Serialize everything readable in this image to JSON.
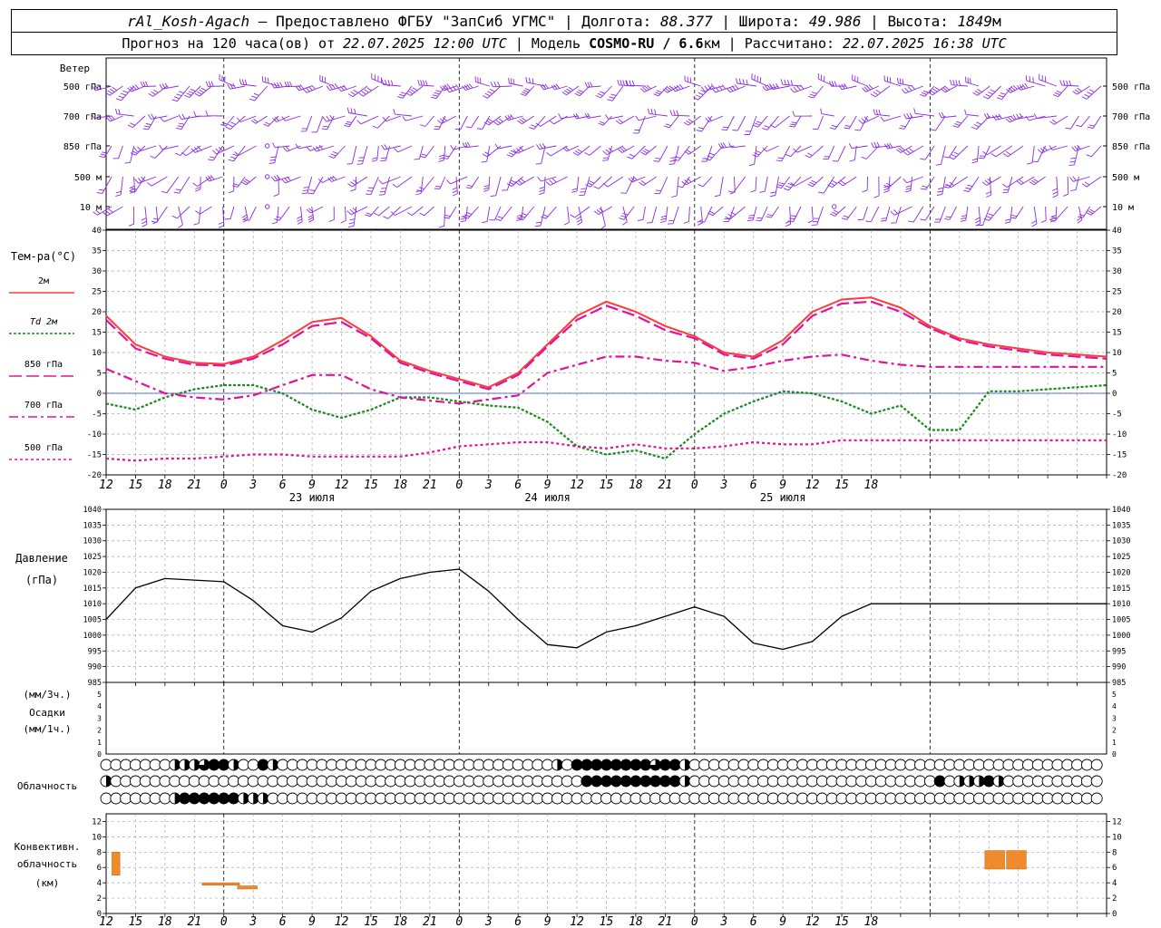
{
  "header": {
    "station": "rAl_Kosh-Agach",
    "provider": "Предоставлено ФГБУ \"ЗапСиб УГМС\"",
    "lon_label": "Долгота:",
    "lon": "88.377",
    "lat_label": "Широта:",
    "lat": "49.986",
    "alt_label": "Высота:",
    "alt": "1849",
    "alt_unit": "м",
    "forecast_label": "Прогноз на 120 часа(ов) от",
    "forecast_start": "22.07.2025 12:00 UTC",
    "model_label": "Модель",
    "model": "COSMO-RU / 6.6",
    "model_unit": "км",
    "calc_label": "Рассчитано:",
    "calc_time": "22.07.2025 16:38 UTC",
    "sep": "|",
    "dash": "–"
  },
  "wind_panel": {
    "title": "Ветер",
    "levels": [
      "500 гПа",
      "700 гПа",
      "850 гПа",
      "500 м",
      "10  м"
    ],
    "color": "#8a2be2"
  },
  "time_axis": {
    "hour_labels": [
      "12",
      "15",
      "18",
      "21",
      "0",
      "3",
      "6",
      "9",
      "12",
      "15",
      "18",
      "21",
      "0",
      "3",
      "6",
      "9",
      "12",
      "15",
      "18",
      "21",
      "0",
      "3",
      "6",
      "9",
      "12",
      "15",
      "18"
    ],
    "dates": [
      {
        "label": "23 июля",
        "at_hour": 21
      },
      {
        "label": "24 июля",
        "at_hour": 45
      },
      {
        "label": "25 июля",
        "at_hour": 69
      }
    ],
    "midnights": [
      12,
      36,
      60,
      84
    ],
    "range_hours": [
      0,
      102
    ]
  },
  "temp_panel": {
    "title": "Тем-ра(°С)",
    "legend": [
      {
        "label": "2м",
        "color": "#ff3b3b",
        "dash": ""
      },
      {
        "label": "Td  2м",
        "color": "#1a8a1a",
        "dash": "3,2"
      },
      {
        "label": "850 гПа",
        "color": "#e0139a",
        "dash": "14,5"
      },
      {
        "label": "700 гПа",
        "color": "#e0139a",
        "dash": "10,4,3,4"
      },
      {
        "label": "500 гПа",
        "color": "#e0139a",
        "dash": "3,3"
      }
    ],
    "ylim": [
      -20,
      40
    ],
    "ticks": [
      "40",
      "35",
      "30",
      "25",
      "20",
      "15",
      "10",
      "5",
      "0",
      "-5",
      "-10",
      "-15",
      "-20"
    ]
  },
  "pressure_panel": {
    "title1": "Давление",
    "title2": "(гПа)",
    "ylim": [
      985,
      1040
    ],
    "ticks": [
      "1040",
      "1035",
      "1030",
      "1025",
      "1020",
      "1015",
      "1010",
      "1005",
      "1000",
      "995",
      "990",
      "985"
    ]
  },
  "precip_panel": {
    "title1": "(мм/3ч.)",
    "title2": "Осадки",
    "title3": "(мм/1ч.)",
    "ticks": [
      "5",
      "4",
      "3",
      "2",
      "1",
      "0"
    ]
  },
  "cloud_panel": {
    "title": "Облачность",
    "rows": [
      "000000022234420042000000000000000000000000000020444444443442000000000000000000000000000000000000000000",
      "200000000000000000000000000000000000000000000000044444444442000000000000000000000000040222420000000000",
      "000000024444442220000000000000000000000000000000000000000000000000000000000000000000000000000000000000"
    ]
  },
  "conv_panel": {
    "title1": "Конвективн.",
    "title2": "облачность",
    "title3": "(км)",
    "ylim": [
      0,
      13
    ],
    "ticks": [
      "12",
      "10",
      "8",
      "6",
      "4",
      "2",
      "0"
    ],
    "color": "#f08a2c"
  },
  "chart_data": {
    "type": "line",
    "x_unit": "hours since 22.07.2025 12:00 UTC",
    "temperature": {
      "x": [
        0,
        3,
        6,
        9,
        12,
        15,
        18,
        21,
        24,
        27,
        30,
        33,
        36,
        39,
        42,
        45,
        48,
        51,
        54,
        57,
        60,
        63,
        66,
        69,
        72,
        75,
        78,
        81,
        84,
        87,
        90,
        93,
        96,
        99,
        102
      ],
      "series": [
        {
          "name": "2м",
          "values": [
            19,
            12,
            9,
            7.5,
            7.2,
            9,
            13,
            17.5,
            18.5,
            14,
            8,
            5.5,
            3.5,
            1.5,
            5,
            12,
            19,
            22.5,
            20,
            16.5,
            14,
            10,
            9,
            13,
            20,
            23,
            23.5,
            21,
            16.5,
            13.5,
            12,
            11,
            10,
            9.5,
            9
          ]
        },
        {
          "name": "Td  2м",
          "values": [
            -2.5,
            -4,
            -1,
            1,
            2,
            2,
            0,
            -4,
            -6,
            -4,
            -1,
            -1,
            -2,
            -3,
            -3.5,
            -7,
            -13,
            -15,
            -14,
            -16,
            -10,
            -5,
            -2,
            0.5,
            0,
            -2,
            -5,
            -3,
            -9,
            -9,
            0.5,
            0.5,
            1,
            1.5,
            2
          ]
        },
        {
          "name": "850 гПа",
          "values": [
            18,
            11,
            8.5,
            7,
            6.8,
            8.5,
            12,
            16.5,
            17.5,
            13.5,
            7.5,
            5,
            3,
            1,
            4.5,
            11.5,
            18,
            21.5,
            19,
            15.5,
            13.5,
            9.5,
            8.5,
            12,
            19,
            22,
            22.5,
            20,
            16,
            13,
            11.5,
            10.5,
            9.5,
            9,
            8.5
          ]
        },
        {
          "name": "700 гПа",
          "values": [
            6,
            3,
            0,
            -1,
            -1.5,
            -0.5,
            2,
            4.5,
            4.5,
            1,
            -1,
            -1.8,
            -2.5,
            -1.5,
            -0.5,
            5,
            7,
            9,
            9,
            8,
            7.5,
            5.5,
            6.5,
            8,
            9,
            9.5,
            8,
            7,
            6.5,
            6.5,
            6.5,
            6.5,
            6.5,
            6.5,
            6.5
          ]
        },
        {
          "name": "500 гПа",
          "values": [
            -16,
            -16.5,
            -16,
            -16,
            -15.5,
            -15,
            -15,
            -15.5,
            -15.5,
            -15.5,
            -15.5,
            -14.5,
            -13,
            -12.5,
            -12,
            -12,
            -13,
            -13.5,
            -12.5,
            -13.5,
            -13.5,
            -13,
            -12,
            -12.5,
            -12.5,
            -11.5,
            -11.5,
            -11.5,
            -11.5,
            -11.5,
            -11.5,
            -11.5,
            -11.5,
            -11.5,
            -11.5
          ]
        }
      ]
    },
    "pressure": {
      "x": [
        0,
        3,
        6,
        9,
        12,
        15,
        18,
        21,
        24,
        27,
        30,
        33,
        36,
        39,
        42,
        45,
        48,
        51,
        54,
        57,
        60,
        63,
        66,
        69,
        72,
        75,
        78,
        81,
        84,
        87,
        90,
        93,
        96,
        99,
        102
      ],
      "values": [
        1005,
        1015,
        1018,
        1017.5,
        1017,
        1011,
        1003,
        1001,
        1005.5,
        1014,
        1018,
        1020,
        1021,
        1014,
        1005,
        997,
        996,
        1001,
        1003,
        1006,
        1009,
        1006,
        997.5,
        995.5,
        998,
        1006,
        1010,
        1010,
        1010,
        1010,
        1010,
        1010,
        1010,
        1010,
        1010
      ]
    },
    "precipitation": {
      "values": []
    },
    "convective_cloud": {
      "bars": [
        {
          "x0": 0.6,
          "x1": 1.4,
          "bottom": 5,
          "top": 8
        },
        {
          "x0": 9.8,
          "x1": 13.6,
          "bottom": 3.7,
          "top": 4
        },
        {
          "x0": 13.4,
          "x1": 15.4,
          "bottom": 3.2,
          "top": 3.6
        },
        {
          "x0": 89.6,
          "x1": 91.6,
          "bottom": 5.8,
          "top": 8.2
        },
        {
          "x0": 91.8,
          "x1": 93.8,
          "bottom": 5.8,
          "top": 8.2
        }
      ]
    }
  }
}
